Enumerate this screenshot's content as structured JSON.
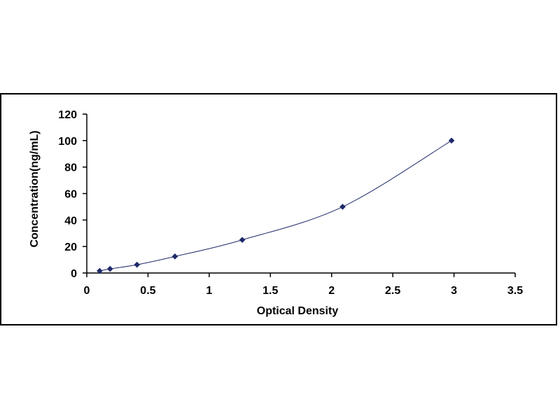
{
  "chart_data": {
    "type": "scatter",
    "title": "",
    "xlabel": "Optical Density",
    "ylabel": "Concentration(ng/mL)",
    "xlim": [
      0,
      3.5
    ],
    "ylim": [
      0,
      120
    ],
    "x_ticks": [
      "0",
      "0.5",
      "1",
      "1.5",
      "2",
      "2.5",
      "3",
      "3.5"
    ],
    "y_ticks": [
      "0",
      "20",
      "40",
      "60",
      "80",
      "100",
      "120"
    ],
    "grid": false,
    "legend": "none",
    "trendline": "smooth curve",
    "series": [
      {
        "x": [
          0.105,
          0.19,
          0.41,
          0.72,
          1.27,
          2.09,
          2.98
        ],
        "y": [
          1.56,
          3.12,
          6.25,
          12.5,
          25,
          50,
          100
        ],
        "color": "#1f2a6b",
        "marker": "diamond"
      }
    ]
  }
}
